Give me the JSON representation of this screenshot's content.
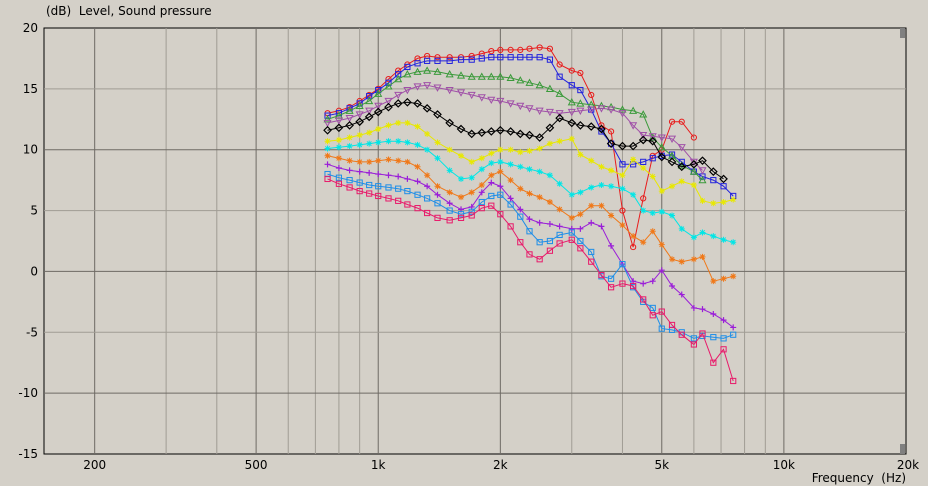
{
  "title": "(dB)  Level, Sound pressure",
  "xlabel": "Frequency  (Hz)",
  "chart_data": {
    "type": "line",
    "title": "(dB)  Level, Sound pressure",
    "xlabel": "Frequency  (Hz)",
    "ylabel": "(dB)",
    "xscale": "log",
    "xlim": [
      150,
      20000
    ],
    "ylim": [
      -15,
      20
    ],
    "grid": true,
    "x_ticks": [
      200,
      500,
      1000,
      2000,
      5000,
      10000,
      20000
    ],
    "x_tick_labels": [
      "200",
      "500",
      "1k",
      "2k",
      "5k",
      "10k",
      "20k"
    ],
    "y_ticks": [
      20,
      15,
      10,
      5,
      0,
      -5,
      -10,
      -15
    ],
    "y_tick_labels": [
      "20",
      "15",
      "10",
      "5",
      "0",
      "-5",
      "-10",
      "-15"
    ],
    "x": [
      750,
      800,
      850,
      900,
      950,
      1000,
      1060,
      1120,
      1180,
      1250,
      1320,
      1400,
      1500,
      1600,
      1700,
      1800,
      1900,
      2000,
      2120,
      2240,
      2360,
      2500,
      2650,
      2800,
      3000,
      3150,
      3350,
      3550,
      3750,
      4000,
      4250,
      4500,
      4750,
      5000,
      5300,
      5600,
      6000,
      6300,
      6700,
      7100,
      7500,
      8000
    ],
    "series": [
      {
        "color": "#e81c1c",
        "marker": "circle",
        "values": [
          13.0,
          13.2,
          13.5,
          14.0,
          14.5,
          15.0,
          15.8,
          16.5,
          17.0,
          17.5,
          17.7,
          17.6,
          17.6,
          17.6,
          17.7,
          17.9,
          18.1,
          18.2,
          18.2,
          18.2,
          18.3,
          18.4,
          18.3,
          17.0,
          16.5,
          16.3,
          14.5,
          12.0,
          11.5,
          5.0,
          2.0,
          6.0,
          9.5,
          10.0,
          12.3,
          12.3,
          11.0,
          null,
          null,
          null,
          null,
          null
        ]
      },
      {
        "color": "#2222dd",
        "marker": "square",
        "values": [
          12.8,
          13.0,
          13.4,
          13.8,
          14.4,
          14.9,
          15.5,
          16.2,
          16.8,
          17.1,
          17.3,
          17.3,
          17.3,
          17.4,
          17.4,
          17.5,
          17.6,
          17.6,
          17.6,
          17.6,
          17.6,
          17.6,
          17.4,
          16.0,
          15.3,
          14.9,
          13.3,
          11.5,
          10.5,
          8.8,
          8.8,
          9.0,
          9.3,
          9.5,
          9.6,
          9.0,
          8.2,
          7.8,
          7.5,
          7.0,
          6.2,
          null
        ]
      },
      {
        "color": "#3a9a3a",
        "marker": "triangle",
        "values": [
          12.5,
          12.8,
          13.2,
          13.6,
          14.0,
          14.6,
          15.2,
          15.8,
          16.2,
          16.4,
          16.5,
          16.4,
          16.2,
          16.1,
          16.0,
          16.0,
          16.0,
          16.0,
          15.9,
          15.7,
          15.5,
          15.3,
          15.0,
          14.6,
          13.9,
          13.8,
          13.7,
          13.6,
          13.5,
          13.3,
          13.2,
          12.9,
          11.0,
          10.2,
          9.5,
          8.7,
          8.2,
          7.5,
          null,
          null,
          null,
          null
        ]
      },
      {
        "color": "#a050a8",
        "marker": "triangle-down",
        "values": [
          12.2,
          12.4,
          12.6,
          12.9,
          13.2,
          13.6,
          14.0,
          14.5,
          14.9,
          15.2,
          15.3,
          15.1,
          14.9,
          14.7,
          14.5,
          14.3,
          14.1,
          14.0,
          13.8,
          13.6,
          13.4,
          13.2,
          13.1,
          13.0,
          13.1,
          13.2,
          13.3,
          13.4,
          13.3,
          13.0,
          12.0,
          11.2,
          11.1,
          11.0,
          10.9,
          10.2,
          9.0,
          8.3,
          null,
          null,
          null,
          null
        ]
      },
      {
        "color": "#000000",
        "marker": "diamond",
        "values": [
          11.6,
          11.8,
          12.0,
          12.3,
          12.7,
          13.1,
          13.5,
          13.8,
          13.9,
          13.8,
          13.4,
          12.9,
          12.2,
          11.7,
          11.3,
          11.4,
          11.5,
          11.6,
          11.5,
          11.3,
          11.2,
          11.0,
          11.8,
          12.6,
          12.2,
          12.0,
          11.9,
          11.7,
          10.5,
          10.3,
          10.3,
          10.8,
          10.7,
          9.4,
          9.0,
          8.6,
          8.8,
          9.1,
          8.2,
          7.6,
          null,
          null
        ]
      },
      {
        "color": "#e8e800",
        "marker": "star",
        "values": [
          10.7,
          10.8,
          11.0,
          11.2,
          11.4,
          11.7,
          12.0,
          12.2,
          12.2,
          11.9,
          11.3,
          10.6,
          10.0,
          9.5,
          9.0,
          9.3,
          9.7,
          10.0,
          10.0,
          9.8,
          9.9,
          10.1,
          10.5,
          10.7,
          10.9,
          9.6,
          9.1,
          8.6,
          8.3,
          7.9,
          9.2,
          8.5,
          7.8,
          6.6,
          7.0,
          7.4,
          7.1,
          5.8,
          5.6,
          5.7,
          5.9,
          null
        ]
      },
      {
        "color": "#00e6e6",
        "marker": "star",
        "values": [
          10.1,
          10.2,
          10.3,
          10.4,
          10.5,
          10.6,
          10.7,
          10.7,
          10.6,
          10.4,
          10.0,
          9.3,
          8.3,
          7.6,
          7.7,
          8.4,
          8.9,
          9.0,
          8.8,
          8.6,
          8.4,
          8.2,
          7.9,
          7.2,
          6.3,
          6.5,
          6.9,
          7.1,
          7.0,
          6.8,
          6.3,
          5.0,
          4.8,
          4.9,
          4.6,
          3.5,
          2.8,
          3.2,
          2.9,
          2.6,
          2.4,
          null
        ]
      },
      {
        "color": "#f07818",
        "marker": "star",
        "values": [
          9.5,
          9.3,
          9.1,
          9.0,
          9.0,
          9.1,
          9.2,
          9.1,
          9.0,
          8.6,
          7.9,
          7.0,
          6.5,
          6.1,
          6.5,
          7.1,
          7.9,
          8.2,
          7.5,
          6.8,
          6.4,
          6.1,
          5.7,
          5.1,
          4.4,
          4.7,
          5.4,
          5.4,
          4.6,
          3.8,
          2.9,
          2.4,
          3.3,
          2.2,
          1.0,
          0.8,
          1.0,
          1.2,
          -0.8,
          -0.6,
          -0.4,
          null
        ]
      },
      {
        "color": "#9a1ed8",
        "marker": "plus",
        "values": [
          8.8,
          8.5,
          8.3,
          8.2,
          8.1,
          8.0,
          7.9,
          7.8,
          7.6,
          7.4,
          7.0,
          6.3,
          5.6,
          5.1,
          5.3,
          6.5,
          7.3,
          7.0,
          6.0,
          5.1,
          4.3,
          4.0,
          3.9,
          3.7,
          3.5,
          3.5,
          4.0,
          3.7,
          2.1,
          0.6,
          -0.8,
          -1.0,
          -0.8,
          0.1,
          -1.2,
          -1.9,
          -3.0,
          -3.1,
          -3.5,
          -4.0,
          -4.6,
          null
        ]
      },
      {
        "color": "#1e8ee8",
        "marker": "square",
        "values": [
          8.0,
          7.7,
          7.5,
          7.3,
          7.1,
          7.0,
          6.9,
          6.8,
          6.6,
          6.3,
          6.0,
          5.6,
          5.0,
          4.7,
          4.9,
          5.7,
          6.2,
          6.3,
          5.5,
          4.5,
          3.3,
          2.4,
          2.5,
          3.0,
          3.2,
          2.5,
          1.6,
          -0.4,
          -0.6,
          0.6,
          -1.3,
          -2.5,
          -3.0,
          -4.7,
          -4.8,
          -5.0,
          -5.5,
          -5.3,
          -5.4,
          -5.5,
          -5.2,
          null
        ]
      },
      {
        "color": "#e81a6a",
        "marker": "square",
        "values": [
          7.6,
          7.2,
          6.9,
          6.6,
          6.4,
          6.2,
          6.0,
          5.8,
          5.5,
          5.2,
          4.8,
          4.4,
          4.2,
          4.4,
          4.6,
          5.2,
          5.4,
          4.7,
          3.7,
          2.4,
          1.4,
          1.0,
          1.7,
          2.3,
          2.6,
          1.9,
          0.8,
          -0.3,
          -1.3,
          -1.0,
          -1.2,
          -2.3,
          -3.6,
          -3.3,
          -4.4,
          -5.2,
          -6.0,
          -5.1,
          -7.5,
          -6.4,
          -9.0,
          null
        ]
      }
    ]
  }
}
